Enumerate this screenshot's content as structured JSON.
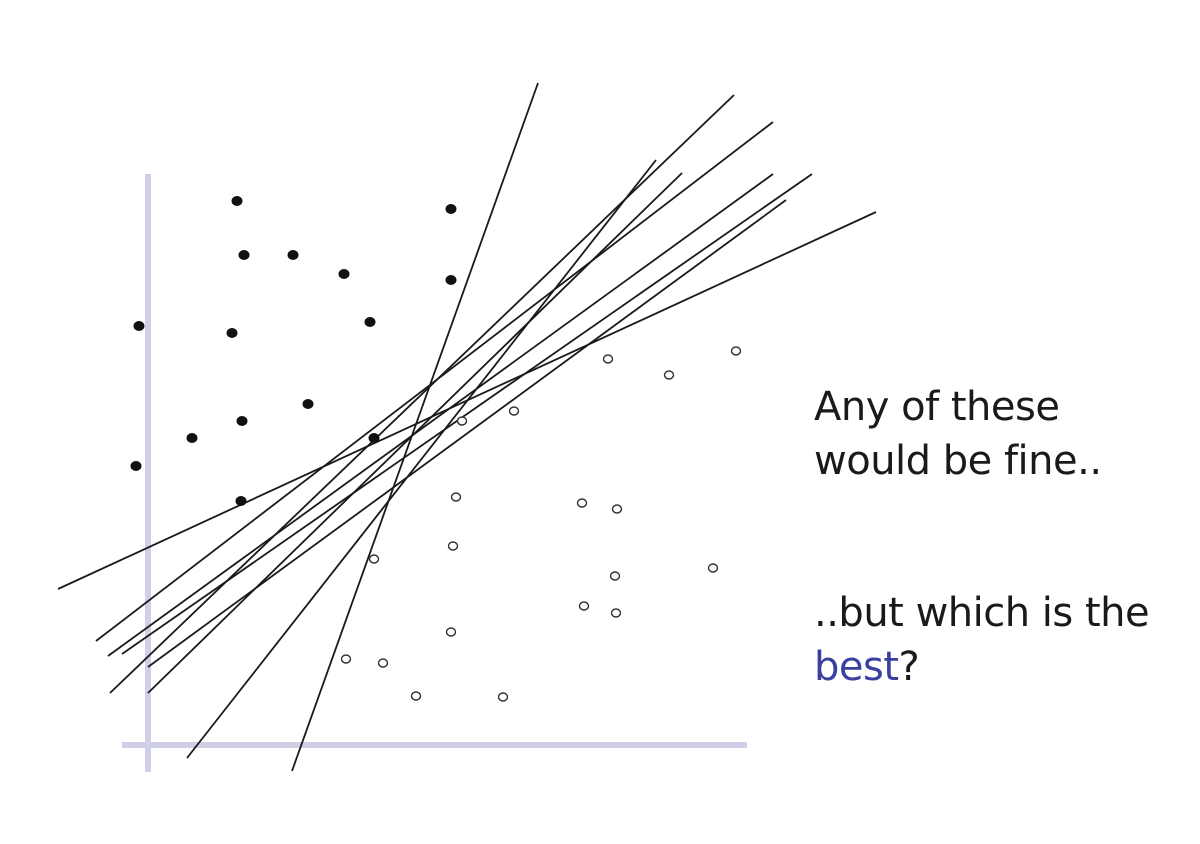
{
  "caption_top": {
    "line1": "Any of these",
    "line2": "would be fine.."
  },
  "caption_bottom": {
    "line1": "..but which is the",
    "highlight": "best",
    "suffix": "?"
  },
  "colors": {
    "axis": "#cfcfe8",
    "line": "#1a1a1a",
    "point_filled": "#111111",
    "point_hollow_stroke": "#333333",
    "text": "#1a1a1a",
    "accent": "#3a40a0"
  },
  "icons": {
    "filled_point": "filled-circle",
    "hollow_point": "hollow-circle"
  }
}
